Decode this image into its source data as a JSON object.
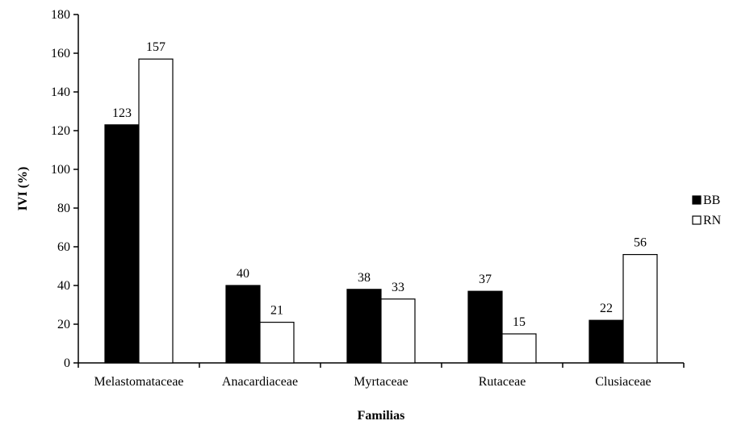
{
  "chart_data": {
    "type": "bar",
    "categories": [
      "Melastomataceae",
      "Anacardiaceae",
      "Myrtaceae",
      "Rutaceae",
      "Clusiaceae"
    ],
    "series": [
      {
        "name": "BB",
        "values": [
          123,
          40,
          38,
          37,
          22
        ],
        "color": "#000000"
      },
      {
        "name": "RN",
        "values": [
          157,
          21,
          33,
          15,
          56
        ],
        "color": "#ffffff"
      }
    ],
    "xlabel": "Familias",
    "ylabel": "IVI (%)",
    "ylim": [
      0,
      180
    ],
    "yticks": [
      0,
      20,
      40,
      60,
      80,
      100,
      120,
      140,
      160,
      180
    ],
    "grid": false,
    "legend_position": "right"
  }
}
